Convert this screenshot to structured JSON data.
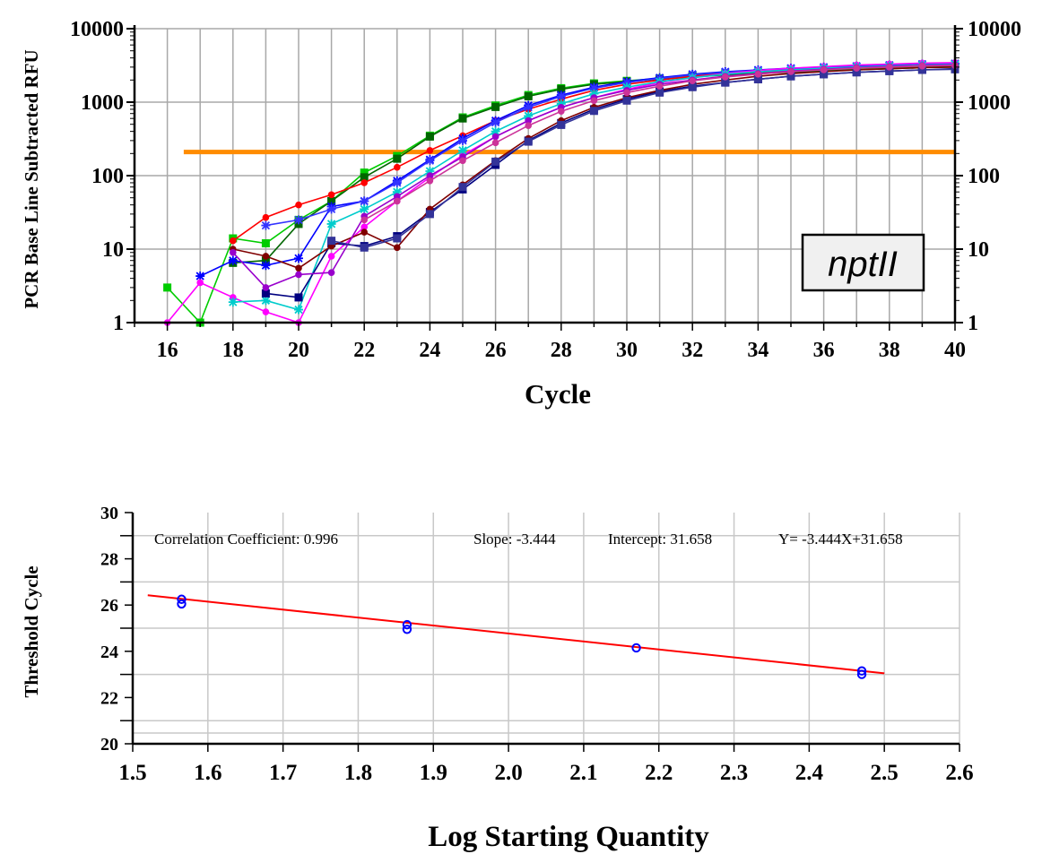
{
  "chart_data": [
    {
      "type": "line",
      "title": "",
      "xlabel": "Cycle",
      "ylabel": "PCR Base Line Subtracted RFU",
      "ylabel_right": "",
      "y_scale": "log",
      "xlim": [
        15,
        40
      ],
      "ylim": [
        1,
        10000
      ],
      "x_ticks": [
        16,
        18,
        20,
        22,
        24,
        26,
        28,
        30,
        32,
        34,
        36,
        38,
        40
      ],
      "y_ticks": [
        1,
        10,
        100,
        1000,
        10000
      ],
      "y_tick_labels": [
        "1",
        "10",
        "100",
        "1000",
        "10000"
      ],
      "grid": true,
      "threshold": {
        "value": 210,
        "x_range": [
          16.5,
          40
        ],
        "color": "#ff8c00"
      },
      "annotation": "nptII",
      "series": [
        {
          "color": "#00cc00",
          "marker": "square",
          "x": [
            16,
            17,
            18,
            19,
            20,
            21,
            22,
            23,
            24,
            25,
            26,
            27,
            28,
            29,
            30,
            31,
            32,
            33,
            34,
            35,
            36,
            37,
            38,
            39,
            40
          ],
          "y": [
            3,
            1,
            14,
            12,
            25,
            45,
            110,
            185,
            350,
            620,
            900,
            1250,
            1550,
            1800,
            1950,
            2100,
            2300,
            2450,
            2550,
            2650,
            2750,
            2850,
            2950,
            3000,
            3050
          ]
        },
        {
          "color": "#006600",
          "marker": "square",
          "x": [
            18,
            19,
            20,
            21,
            22,
            23,
            24,
            25,
            26,
            27,
            28,
            29,
            30,
            31,
            32,
            33,
            34,
            35,
            36,
            37,
            38,
            39,
            40
          ],
          "y": [
            6.5,
            7,
            22,
            45,
            95,
            170,
            340,
            600,
            860,
            1200,
            1500,
            1750,
            1900,
            2050,
            2200,
            2350,
            2450,
            2550,
            2650,
            2750,
            2850,
            2950,
            3050
          ]
        },
        {
          "color": "#ff0000",
          "marker": "circle",
          "x": [
            18,
            19,
            20,
            21,
            22,
            23,
            24,
            25,
            26,
            27,
            28,
            29,
            30,
            31,
            32,
            33,
            34,
            35,
            36,
            37,
            38,
            39,
            40
          ],
          "y": [
            13,
            27,
            40,
            55,
            80,
            130,
            220,
            350,
            560,
            800,
            1100,
            1450,
            1750,
            2000,
            2250,
            2450,
            2600,
            2750,
            2900,
            3000,
            3100,
            3200,
            3300
          ]
        },
        {
          "color": "#0000ff",
          "marker": "star",
          "x": [
            17,
            18,
            19,
            20,
            21,
            22,
            23,
            24,
            25,
            26,
            27,
            28,
            29,
            30,
            31,
            32,
            33,
            34,
            35,
            36,
            37,
            38,
            39,
            40
          ],
          "y": [
            4.3,
            7,
            6,
            7.5,
            38,
            45,
            85,
            165,
            320,
            560,
            900,
            1250,
            1600,
            1900,
            2150,
            2400,
            2600,
            2750,
            2900,
            3000,
            3100,
            3200,
            3300,
            3350
          ]
        },
        {
          "color": "#3333ff",
          "marker": "star",
          "x": [
            19,
            20,
            21,
            22,
            23,
            24,
            25,
            26,
            27,
            28,
            29,
            30,
            31,
            32,
            33,
            34,
            35,
            36,
            37,
            38,
            39,
            40
          ],
          "y": [
            21,
            25,
            35,
            45,
            80,
            160,
            300,
            530,
            850,
            1200,
            1550,
            1850,
            2100,
            2350,
            2550,
            2700,
            2850,
            2950,
            3050,
            3150,
            3250,
            3300
          ]
        },
        {
          "color": "#ff00ff",
          "marker": "circle",
          "x": [
            16,
            17,
            18,
            19,
            20,
            21,
            22,
            23,
            24,
            25,
            26,
            27,
            28,
            29,
            30,
            31,
            32,
            33,
            34,
            35,
            36,
            37,
            38,
            39,
            40
          ],
          "y": [
            1,
            3.5,
            2.2,
            1.4,
            1,
            8,
            20,
            45,
            95,
            190,
            340,
            560,
            850,
            1150,
            1500,
            1850,
            2150,
            2450,
            2700,
            2900,
            3050,
            3200,
            3300,
            3400,
            3450
          ]
        },
        {
          "color": "#00cccc",
          "marker": "star",
          "x": [
            18,
            19,
            20,
            21,
            22,
            23,
            24,
            25,
            26,
            27,
            28,
            29,
            30,
            31,
            32,
            33,
            34,
            35,
            36,
            37,
            38,
            39,
            40
          ],
          "y": [
            1.9,
            2,
            1.5,
            22,
            35,
            60,
            115,
            220,
            400,
            650,
            950,
            1300,
            1600,
            1900,
            2150,
            2400,
            2600,
            2750,
            2900,
            3000,
            3100,
            3200,
            3250
          ]
        },
        {
          "color": "#000080",
          "marker": "square",
          "x": [
            19,
            20,
            21,
            22,
            23,
            24,
            25,
            26,
            27,
            28,
            29,
            30,
            31,
            32,
            33,
            34,
            35,
            36,
            37,
            38,
            39,
            40
          ],
          "y": [
            2.5,
            2.2,
            12,
            11,
            15,
            32,
            65,
            140,
            300,
            520,
            800,
            1100,
            1400,
            1650,
            1850,
            2050,
            2250,
            2400,
            2550,
            2650,
            2750,
            2850
          ]
        },
        {
          "color": "#800000",
          "marker": "circle",
          "x": [
            18,
            19,
            20,
            21,
            22,
            23,
            24,
            25,
            26,
            27,
            28,
            29,
            30,
            31,
            32,
            33,
            34,
            35,
            36,
            37,
            38,
            39,
            40
          ],
          "y": [
            10,
            8,
            5.5,
            11,
            17,
            10.5,
            35,
            75,
            160,
            320,
            560,
            850,
            1150,
            1450,
            1750,
            2000,
            2250,
            2450,
            2600,
            2750,
            2850,
            2950,
            3000
          ]
        },
        {
          "color": "#9900cc",
          "marker": "circle",
          "x": [
            18,
            19,
            20,
            21,
            22,
            23,
            24,
            25,
            26,
            27,
            28,
            29,
            30,
            31,
            32,
            33,
            34,
            35,
            36,
            37,
            38,
            39,
            40
          ],
          "y": [
            9,
            3,
            4.5,
            4.8,
            28,
            52,
            100,
            180,
            340,
            560,
            850,
            1150,
            1450,
            1750,
            2000,
            2250,
            2450,
            2650,
            2800,
            2950,
            3050,
            3150,
            3200
          ]
        },
        {
          "color": "#333399",
          "marker": "square",
          "x": [
            21,
            22,
            23,
            24,
            25,
            26,
            27,
            28,
            29,
            30,
            31,
            32,
            33,
            34,
            35,
            36,
            37,
            38,
            39,
            40
          ],
          "y": [
            13,
            10.5,
            14,
            30,
            70,
            155,
            290,
            490,
            760,
            1050,
            1350,
            1600,
            1850,
            2050,
            2250,
            2400,
            2550,
            2650,
            2750,
            2800
          ]
        },
        {
          "color": "#cc3399",
          "marker": "circle",
          "x": [
            22,
            23,
            24,
            25,
            26,
            27,
            28,
            29,
            30,
            31,
            32,
            33,
            34,
            35,
            36,
            37,
            38,
            39,
            40
          ],
          "y": [
            25,
            45,
            85,
            160,
            280,
            480,
            750,
            1050,
            1350,
            1650,
            1950,
            2200,
            2400,
            2600,
            2750,
            2900,
            3000,
            3100,
            3150
          ]
        }
      ]
    },
    {
      "type": "scatter",
      "title": "",
      "xlabel": "Log Starting Quantity",
      "ylabel": "Threshold Cycle",
      "xlim": [
        1.5,
        2.6
      ],
      "ylim": [
        20,
        30
      ],
      "x_ticks": [
        1.5,
        1.6,
        1.7,
        1.8,
        1.9,
        2.0,
        2.1,
        2.2,
        2.3,
        2.4,
        2.5,
        2.6
      ],
      "x_tick_labels": [
        "1.5",
        "1.6",
        "1.7",
        "1.8",
        "1.9",
        "2.0",
        "2.1",
        "2.2",
        "2.3",
        "2.4",
        "2.5",
        "2.6"
      ],
      "y_ticks": [
        20,
        22,
        24,
        26,
        28,
        30
      ],
      "grid": true,
      "stats": {
        "correlation_text": "Correlation Coefficient: 0.996",
        "slope_text": "Slope: -3.444",
        "intercept_text": "Intercept: 31.658",
        "equation_text": "Y= -3.444X+31.658"
      },
      "fit_line": {
        "slope": -3.444,
        "intercept": 31.658,
        "x_range": [
          1.52,
          2.5
        ],
        "color": "#ff0000"
      },
      "points": [
        {
          "x": 1.565,
          "y": 26.05
        },
        {
          "x": 1.565,
          "y": 26.25
        },
        {
          "x": 1.865,
          "y": 24.95
        },
        {
          "x": 1.865,
          "y": 25.15
        },
        {
          "x": 2.17,
          "y": 24.15
        },
        {
          "x": 2.47,
          "y": 23.0
        },
        {
          "x": 2.47,
          "y": 23.15
        }
      ]
    }
  ]
}
